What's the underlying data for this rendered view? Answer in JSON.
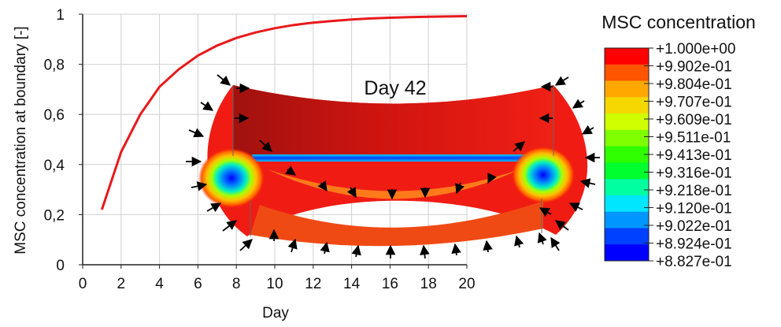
{
  "chart_data": {
    "type": "line",
    "xlabel": "Day",
    "ylabel": "MSC concentration at boundary [-]",
    "x_ticks": [
      0,
      2,
      4,
      6,
      8,
      10,
      12,
      14,
      16,
      18,
      20
    ],
    "y_ticks": [
      "0",
      "0,2",
      "0,4",
      "0,6",
      "0,8",
      "1"
    ],
    "xlim": [
      0,
      20
    ],
    "ylim": [
      0,
      1
    ],
    "grid": true,
    "series": [
      {
        "color": "#e8191c",
        "x": [
          1,
          2,
          3,
          4,
          5,
          6,
          7,
          8,
          9,
          10,
          11,
          12,
          13,
          14,
          15,
          16,
          17,
          18,
          19,
          20
        ],
        "y": [
          0.22,
          0.45,
          0.6,
          0.71,
          0.78,
          0.835,
          0.875,
          0.905,
          0.927,
          0.944,
          0.957,
          0.966,
          0.973,
          0.979,
          0.983,
          0.986,
          0.988,
          0.99,
          0.991,
          0.992
        ]
      }
    ],
    "inset": {
      "label": "Day 42"
    },
    "colorbar": {
      "title": "MSC concentration",
      "labels": [
        "+1.000e+00",
        "+9.902e-01",
        "+9.804e-01",
        "+9.707e-01",
        "+9.609e-01",
        "+9.511e-01",
        "+9.413e-01",
        "+9.316e-01",
        "+9.218e-01",
        "+9.120e-01",
        "+9.022e-01",
        "+8.924e-01",
        "+8.827e-01"
      ],
      "colors": [
        "#ff0000",
        "#ff5400",
        "#ffa800",
        "#f5d800",
        "#cfff00",
        "#7fff00",
        "#2fff00",
        "#00ff2e",
        "#00ff9e",
        "#00e6ff",
        "#0096ff",
        "#0040ff",
        "#0000ff"
      ]
    }
  }
}
